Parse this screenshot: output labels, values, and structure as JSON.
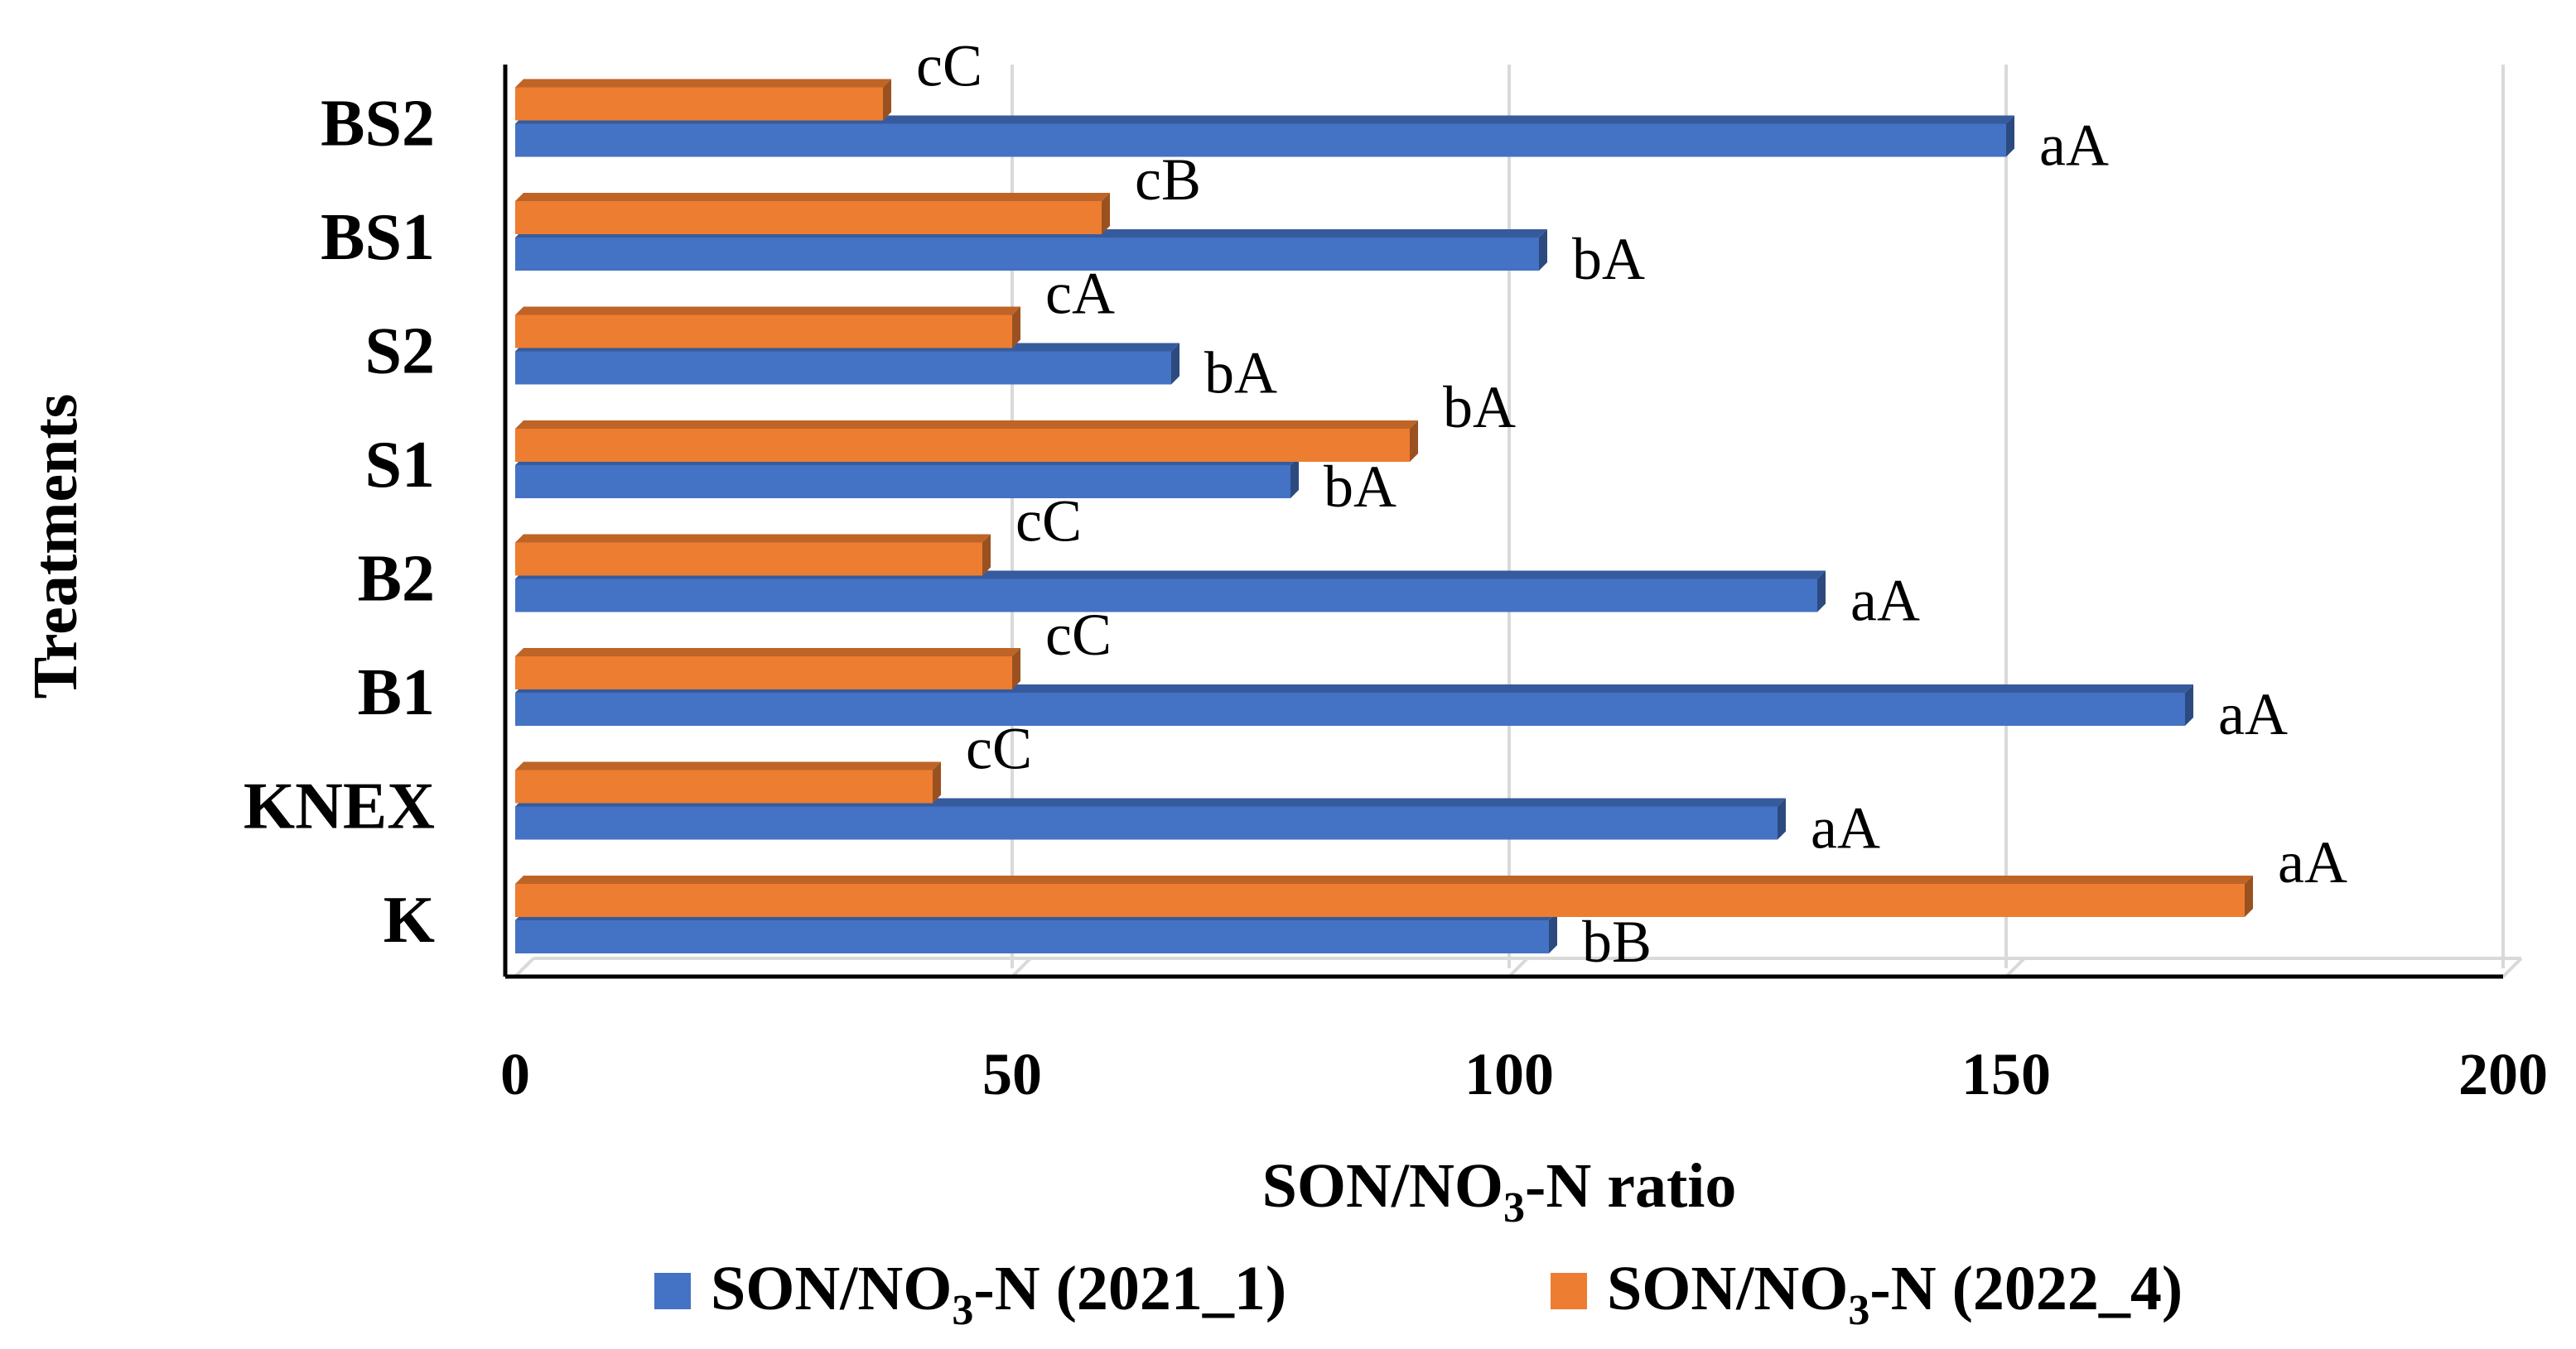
{
  "chart_data": {
    "type": "bar",
    "orientation": "horizontal",
    "categories": [
      "K",
      "KNEX",
      "B1",
      "B2",
      "S1",
      "S2",
      "BS1",
      "BS2"
    ],
    "series": [
      {
        "name_main": "SON/NO",
        "name_sub": "3",
        "name_tail": "-N (2021_1)",
        "color": "#4472C4",
        "values": [
          104,
          127,
          168,
          131,
          78,
          66,
          103,
          150
        ],
        "labels": [
          "bB",
          "aA",
          "aA",
          "aA",
          "bA",
          "bA",
          "bA",
          "aA"
        ]
      },
      {
        "name_main": "SON/NO",
        "name_sub": "3",
        "name_tail": "-N (2022_4)",
        "color": "#ED7D31",
        "values": [
          174,
          42,
          50,
          47,
          90,
          50,
          59,
          37
        ],
        "labels": [
          "aA",
          "cC",
          "cC",
          "cC",
          "bA",
          "cA",
          "cB",
          "cC"
        ]
      }
    ],
    "xlabel_main": "SON/NO",
    "xlabel_sub": "3",
    "xlabel_tail": "-N ratio",
    "ylabel": "Treatments",
    "xlim": [
      0,
      200
    ],
    "xticks": [
      "0",
      "50",
      "100",
      "150",
      "200"
    ],
    "grid": true,
    "legend_position": "bottom"
  }
}
